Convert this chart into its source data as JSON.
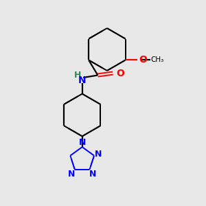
{
  "background_color": "#e8e8e8",
  "bond_color": "#000000",
  "N_color": "#0000ff",
  "O_color": "#ff0000",
  "NH_color": "#0000ff",
  "figsize": [
    3.0,
    3.0
  ],
  "dpi": 100,
  "xlim": [
    0,
    10
  ],
  "ylim": [
    0,
    10
  ]
}
